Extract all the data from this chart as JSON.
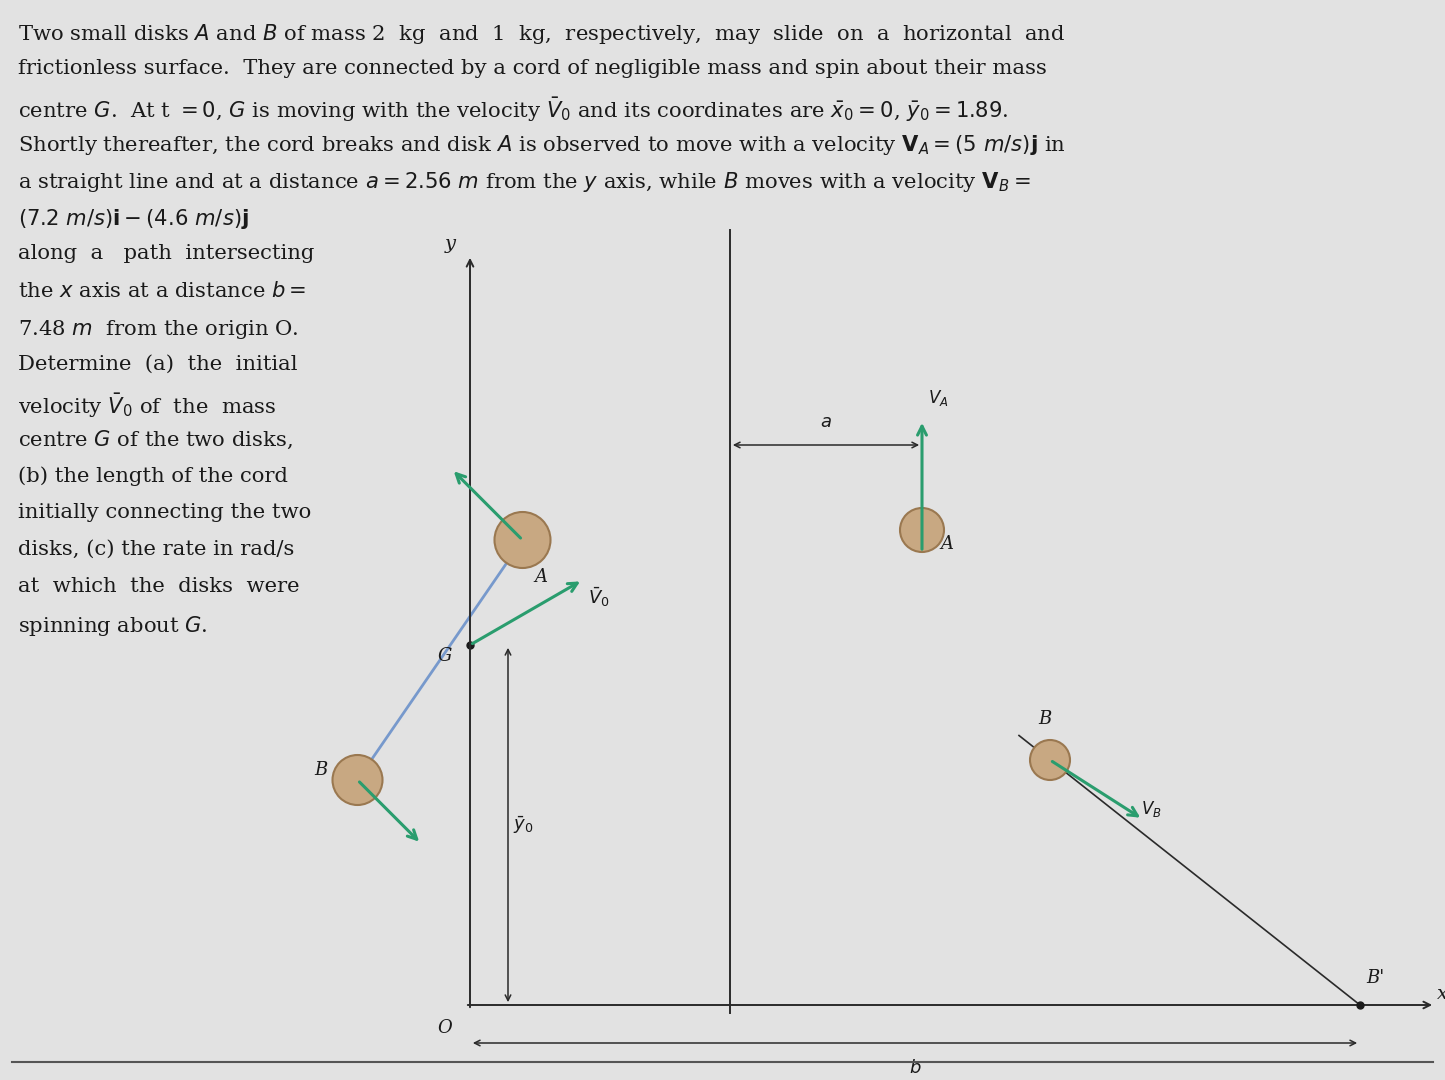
{
  "bg_color": "#e2e2e2",
  "text_color": "#1a1a1a",
  "disk_color": "#c8a882",
  "disk_edge_color": "#9a7850",
  "arrow_color": "#2a9d6e",
  "line_color": "#2a2a2a",
  "axis_color": "#2a2a2a",
  "blue_line_color": "#7799cc",
  "top_lines": [
    "Two small disks $A$ and $B$ of mass 2  kg  and  1  kg,  respectively,  may  slide  on  a  horizontal  and",
    "frictionless surface.  They are connected by a cord of negligible mass and spin about their mass",
    "centre $G$.  At t $= 0$, $G$ is moving with the velocity $\\bar{V}_0$ and its coordinates are $\\bar{x}_0 = 0$, $\\bar{y}_0 = 1.89$.",
    "Shortly thereafter, the cord breaks and disk $A$ is observed to move with a velocity $\\mathbf{V}_A = (5\\ m/s)\\mathbf{j}$ in",
    "a straight line and at a distance $a = 2.56\\ m$ from the $y$ axis, while $B$ moves with a velocity $\\mathbf{V}_B =$",
    "$(7.2\\ m/s)\\mathbf{i} - (4.6\\ m/s)\\mathbf{j}$"
  ],
  "left_lines": [
    "along  a   path  intersecting",
    "the $x$ axis at a distance $b =$",
    "7.48 $m$  from the origin O.",
    "Determine  (a)  the  initial",
    "velocity $\\bar{V}_0$ of  the  mass",
    "centre $G$ of the two disks,",
    "(b) the length of the cord",
    "initially connecting the two",
    "disks, (c) the rate in rad/s",
    "at  which  the  disks  were",
    "spinning about $G$."
  ]
}
